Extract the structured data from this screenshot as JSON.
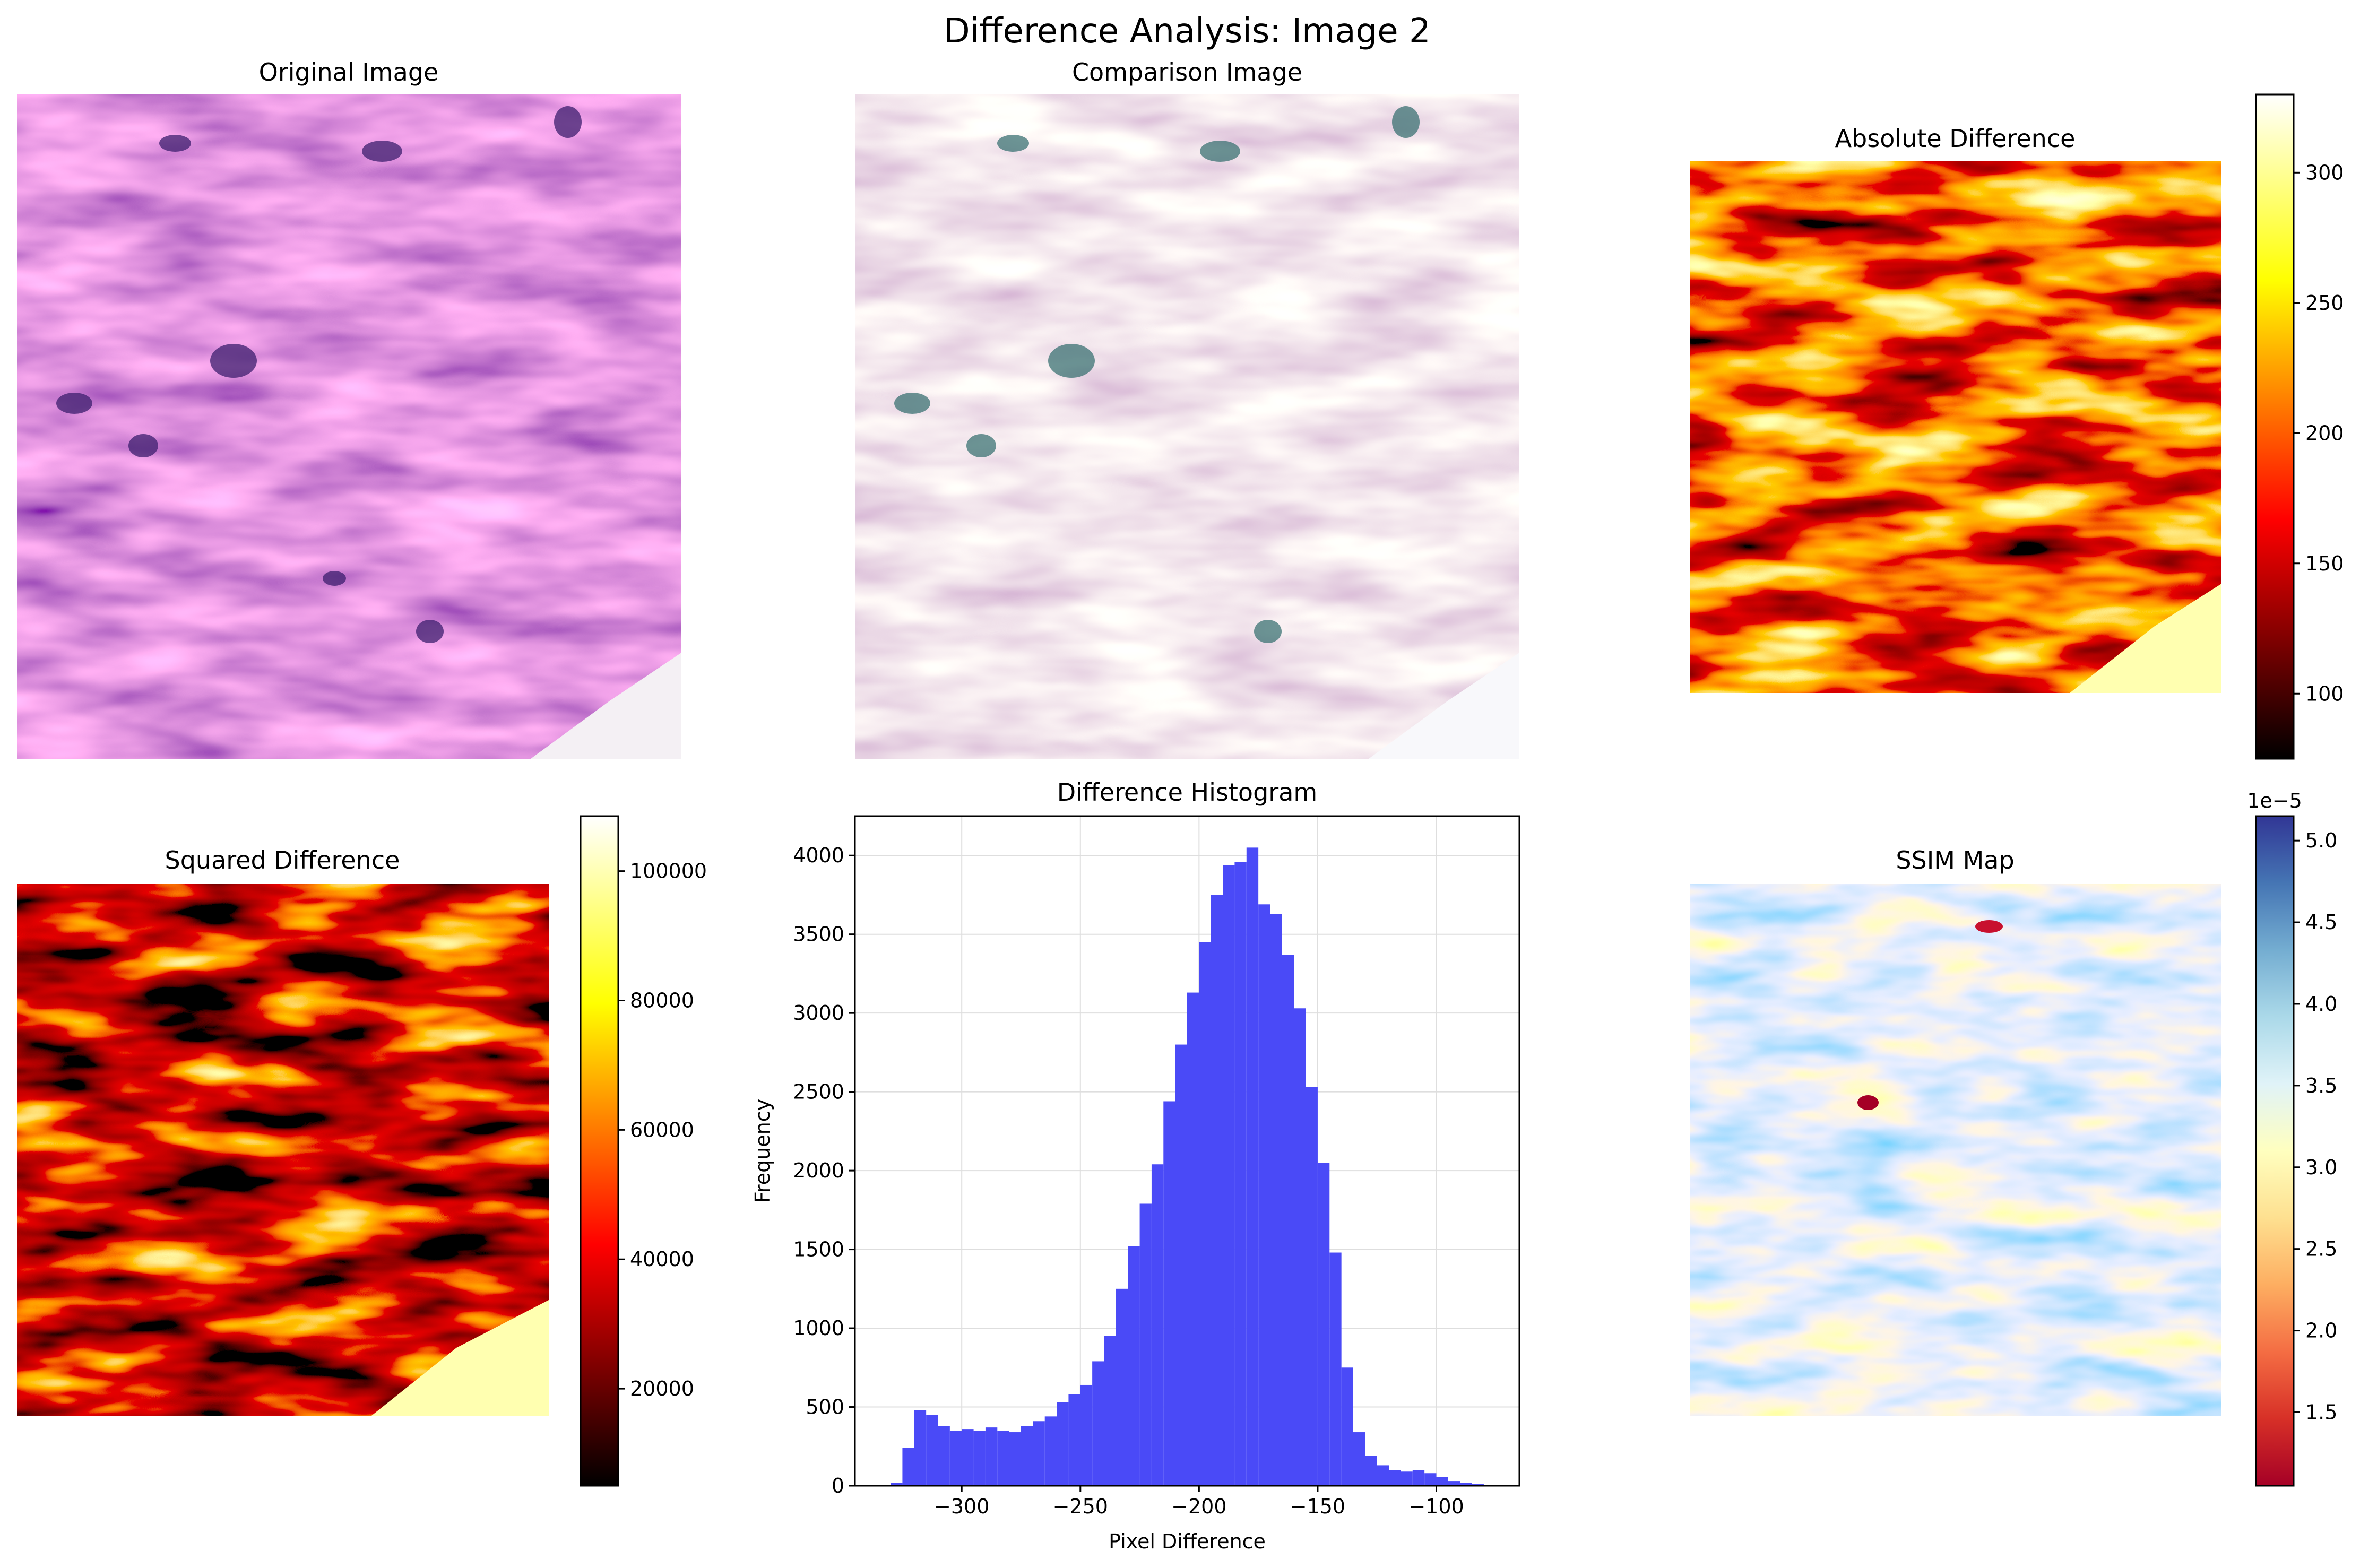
{
  "figure": {
    "suptitle": "Difference Analysis: Image 2"
  },
  "panels": {
    "original": {
      "title": "Original Image"
    },
    "comparison": {
      "title": "Comparison Image"
    },
    "absolute": {
      "title": "Absolute Difference",
      "colormap": "hot",
      "colorbar": {
        "min": 75,
        "max": 330,
        "ticks": [
          "100",
          "150",
          "200",
          "250",
          "300"
        ]
      }
    },
    "squared": {
      "title": "Squared Difference",
      "colormap": "hot",
      "colorbar": {
        "min": 5000,
        "max": 108500,
        "ticks": [
          "20000",
          "40000",
          "60000",
          "80000",
          "100000"
        ]
      }
    },
    "ssim": {
      "title": "SSIM Map",
      "colormap": "RdYlBu",
      "colorbar": {
        "min": 1.05,
        "max": 5.15,
        "offset_label": "1e−5",
        "ticks": [
          "1.5",
          "2.0",
          "2.5",
          "3.0",
          "3.5",
          "4.0",
          "4.5",
          "5.0"
        ]
      }
    }
  },
  "colors": {
    "hist_bar": "#4a4af7",
    "grid": "#dedede"
  },
  "chart_data": {
    "type": "bar",
    "title": "Difference Histogram",
    "xlabel": "Pixel Difference",
    "ylabel": "Frequency",
    "xlim": [
      -345,
      -65
    ],
    "ylim": [
      0,
      4250
    ],
    "grid": true,
    "bin_width": 5,
    "bin_starts": [
      -330,
      -325,
      -320,
      -315,
      -310,
      -305,
      -300,
      -295,
      -290,
      -285,
      -280,
      -275,
      -270,
      -265,
      -260,
      -255,
      -250,
      -245,
      -240,
      -235,
      -230,
      -225,
      -220,
      -215,
      -210,
      -205,
      -200,
      -195,
      -190,
      -185,
      -180,
      -175,
      -170,
      -165,
      -160,
      -155,
      -150,
      -145,
      -140,
      -135,
      -130,
      -125,
      -120,
      -115,
      -110,
      -105,
      -100,
      -95,
      -90,
      -85,
      -80,
      -75
    ],
    "values": [
      20,
      240,
      480,
      450,
      380,
      350,
      360,
      350,
      370,
      350,
      340,
      380,
      410,
      440,
      530,
      580,
      640,
      790,
      950,
      1250,
      1520,
      1790,
      2040,
      2440,
      2800,
      3130,
      3450,
      3750,
      3940,
      3960,
      4050,
      3690,
      3630,
      3370,
      3030,
      2530,
      2050,
      1480,
      750,
      340,
      190,
      130,
      100,
      90,
      100,
      80,
      55,
      30,
      20,
      10,
      5,
      2
    ],
    "xticks": [
      "−300",
      "−250",
      "−200",
      "−150",
      "−100"
    ],
    "xtick_values": [
      -300,
      -250,
      -200,
      -150,
      -100
    ],
    "yticks": [
      "0",
      "500",
      "1000",
      "1500",
      "2000",
      "2500",
      "3000",
      "3500",
      "4000"
    ],
    "ytick_values": [
      0,
      500,
      1000,
      1500,
      2000,
      2500,
      3000,
      3500,
      4000
    ]
  }
}
